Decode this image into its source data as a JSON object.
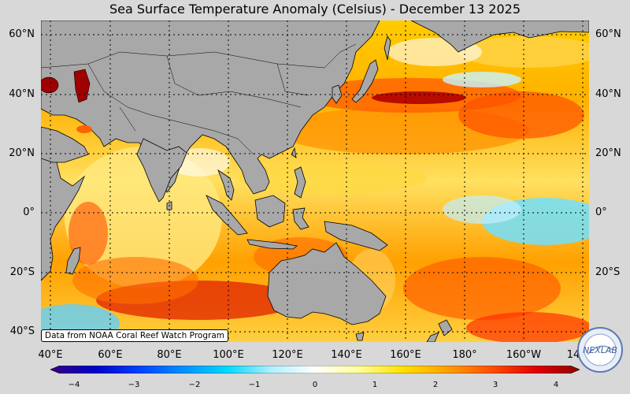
{
  "title": "Sea Surface Temperature Anomaly (Celsius) - December 13 2025",
  "credit": "Data from NOAA Coral Reef Watch Program",
  "logo_text": "NEXLAB",
  "lat_labels": [
    "60°N",
    "40°N",
    "20°N",
    "0°",
    "20°S",
    "40°S"
  ],
  "lon_labels": [
    "40°E",
    "60°E",
    "80°E",
    "100°E",
    "120°E",
    "140°E",
    "160°E",
    "180°",
    "160°W",
    "14"
  ],
  "colorbar": {
    "ticks": [
      "−4",
      "−3",
      "−2",
      "−1",
      "0",
      "1",
      "2",
      "3",
      "4"
    ],
    "range": [
      -4,
      4
    ],
    "colors": [
      "#3a0080",
      "#0000c8",
      "#0040ff",
      "#0090ff",
      "#00d8ff",
      "#b0f0ff",
      "#ffffff",
      "#ffff99",
      "#ffe000",
      "#ffa000",
      "#ff5000",
      "#e00000",
      "#900000"
    ]
  },
  "colors": {
    "land": "#a8a8a8",
    "background": "#d8d8d8"
  }
}
